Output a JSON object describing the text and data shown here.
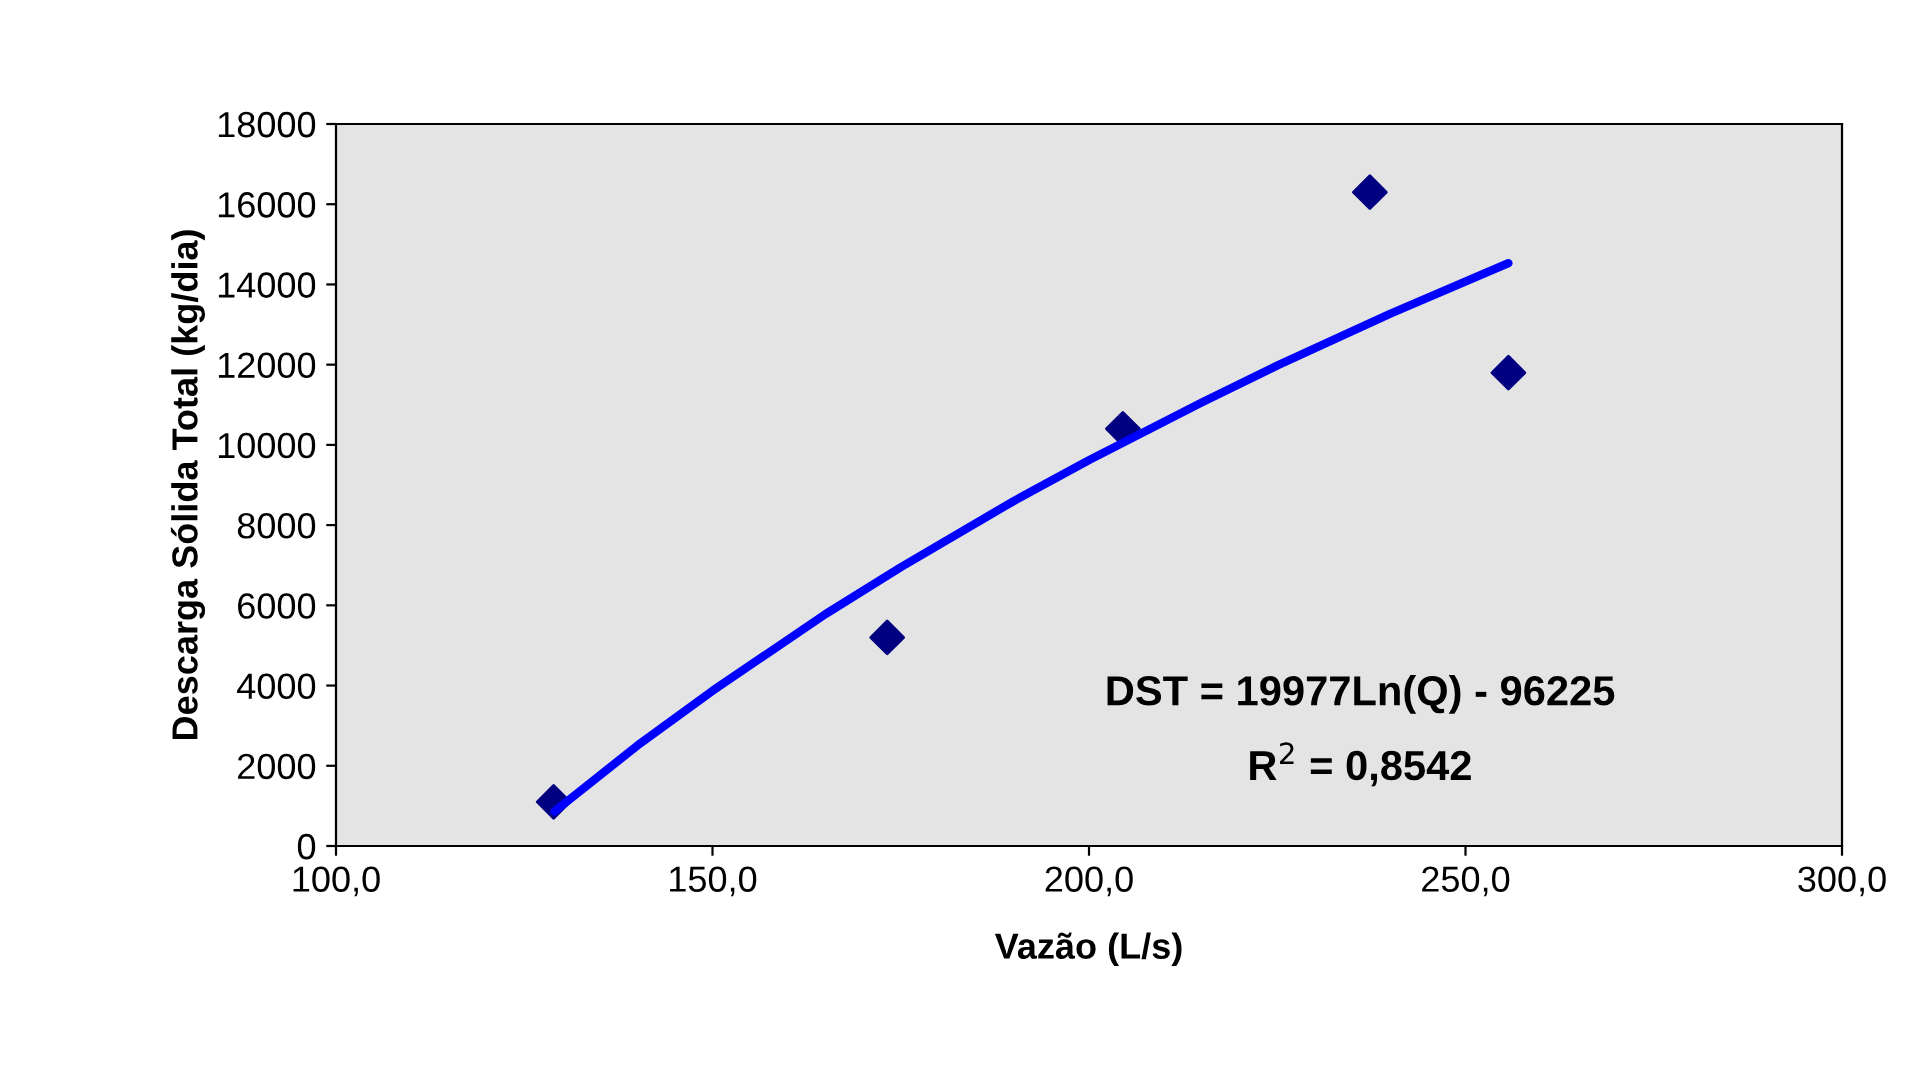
{
  "chart_data": {
    "type": "scatter",
    "xlabel": "Vazão (L/s)",
    "ylabel": "Descarga Sólida Total (kg/dia)",
    "xlim": [
      100,
      300
    ],
    "ylim": [
      0,
      18000
    ],
    "xticks": [
      {
        "value": 100,
        "label": "100,0"
      },
      {
        "value": 150,
        "label": "150,0"
      },
      {
        "value": 200,
        "label": "200,0"
      },
      {
        "value": 250,
        "label": "250,0"
      },
      {
        "value": 300,
        "label": "300,0"
      }
    ],
    "yticks": [
      0,
      2000,
      4000,
      6000,
      8000,
      10000,
      12000,
      14000,
      16000,
      18000
    ],
    "grid": false,
    "legend": false,
    "series": [
      {
        "color": "#000080",
        "marker": "diamond",
        "x": [
          128.9,
          173.2,
          204.5,
          237.3,
          255.7
        ],
        "values": [
          1100,
          5200,
          10400,
          16300,
          11800
        ]
      },
      {
        "type": "line",
        "color": "#0000ff",
        "marker": "none",
        "line_style": "solid",
        "x": [
          129,
          140,
          150,
          165,
          175,
          190,
          200,
          215,
          225,
          240,
          255.7
        ],
        "values": [
          860,
          2500,
          3870,
          5780,
          6950,
          8600,
          9620,
          11060,
          11980,
          13270,
          14530
        ]
      }
    ],
    "annotations": [
      "DST = 19977Ln(Q) - 96225",
      "R$^{2}$ = 0,8542"
    ]
  }
}
